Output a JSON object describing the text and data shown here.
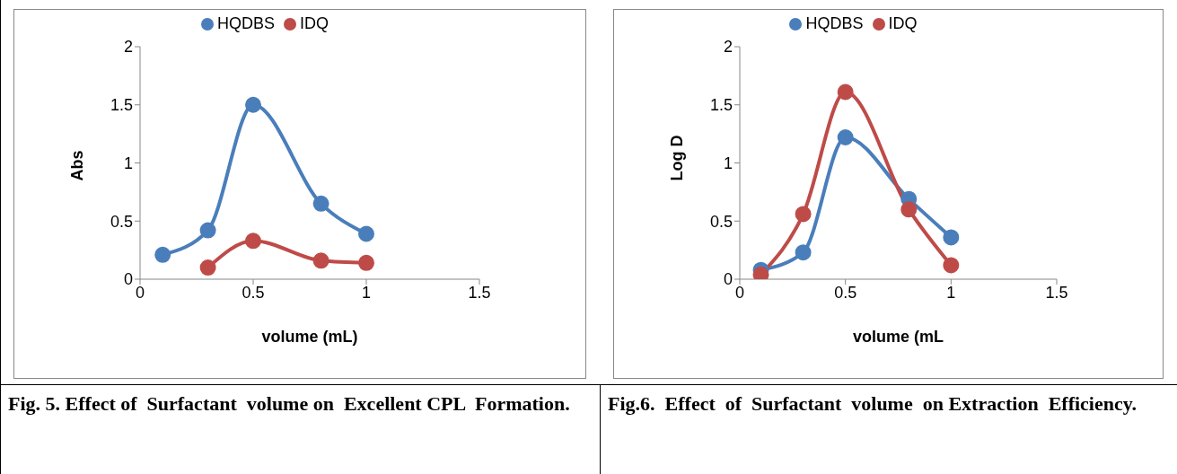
{
  "chart_data": [
    {
      "type": "line",
      "xlabel": "volume (mL)",
      "ylabel": "Abs",
      "xlim": [
        0,
        1.5
      ],
      "xticks": [
        0,
        0.5,
        1,
        1.5
      ],
      "ylim": [
        0,
        2
      ],
      "yticks": [
        0,
        0.5,
        1,
        1.5,
        2
      ],
      "grid": false,
      "legend": "top",
      "marker": "circle",
      "line_style": "solid",
      "annotations": [
        "Fig. 5. Effect of  Surfactant  volume on  Excellent CPL  Formation."
      ],
      "series": [
        {
          "name": "HQDBS",
          "color": "#4a7ebb",
          "x": [
            0.1,
            0.3,
            0.5,
            0.8,
            1
          ],
          "values": [
            0.21,
            0.42,
            1.5,
            0.65,
            0.39
          ]
        },
        {
          "name": "IDQ",
          "color": "#be4b48",
          "x": [
            0.3,
            0.5,
            0.8,
            1
          ],
          "values": [
            0.1,
            0.33,
            0.16,
            0.14
          ]
        }
      ]
    },
    {
      "type": "line",
      "xlabel": "volume (mL",
      "ylabel": "Log D",
      "xlim": [
        0,
        1.5
      ],
      "xticks": [
        0,
        0.5,
        1,
        1.5
      ],
      "ylim": [
        0,
        2
      ],
      "yticks": [
        0,
        0.5,
        1,
        1.5,
        2
      ],
      "grid": false,
      "legend": "top",
      "marker": "circle",
      "line_style": "solid",
      "annotations": [
        "Fig.6.  Effect  of  Surfactant  volume  on Extraction  Efficiency."
      ],
      "series": [
        {
          "name": "HQDBS",
          "color": "#4a7ebb",
          "x": [
            0.1,
            0.3,
            0.5,
            0.8,
            1
          ],
          "values": [
            0.08,
            0.23,
            1.22,
            0.69,
            0.36
          ]
        },
        {
          "name": "IDQ",
          "color": "#be4b48",
          "x": [
            0.1,
            0.3,
            0.5,
            0.8,
            1
          ],
          "values": [
            0.04,
            0.56,
            1.61,
            0.6,
            0.12
          ]
        }
      ]
    }
  ]
}
